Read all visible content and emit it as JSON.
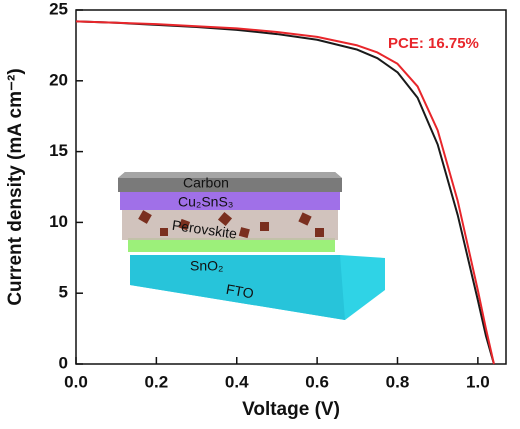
{
  "chart_data": {
    "type": "line",
    "x_label": "Voltage (V)",
    "y_label": "Current density (mA cm⁻²)",
    "annotation": "PCE: 16.75%",
    "annotation_color": "#e8262b",
    "x": [
      0,
      0.1,
      0.2,
      0.3,
      0.4,
      0.5,
      0.6,
      0.7,
      0.75,
      0.8,
      0.85,
      0.9,
      0.95,
      1.0,
      1.02,
      1.04
    ],
    "series": [
      {
        "color": "#1a1a1a",
        "values": [
          24.2,
          24.1,
          23.95,
          23.8,
          23.6,
          23.3,
          22.9,
          22.2,
          21.6,
          20.6,
          18.8,
          15.5,
          10.5,
          4.5,
          2.0,
          0
        ]
      },
      {
        "color": "#e8262b",
        "values": [
          24.2,
          24.1,
          24.0,
          23.85,
          23.7,
          23.45,
          23.1,
          22.5,
          22.0,
          21.2,
          19.6,
          16.5,
          11.5,
          5.2,
          2.5,
          0
        ]
      }
    ],
    "xlim": [
      0,
      1.07
    ],
    "ylim": [
      0,
      25
    ],
    "xticks": [
      {
        "value": 0,
        "label": "0.0"
      },
      0.2,
      0.4,
      0.6,
      0.8,
      {
        "value": 1,
        "label": "1.0"
      }
    ],
    "yticks": [
      0,
      5,
      10,
      15,
      20,
      25
    ],
    "inset_layers": [
      "Carbon",
      "Cu₂SnS₃",
      "Perovskite",
      "SnO₂",
      "FTO"
    ]
  }
}
